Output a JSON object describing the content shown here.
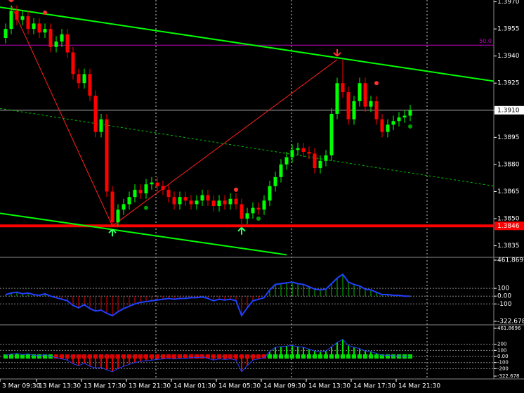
{
  "chart_data": [
    {
      "type": "candlestick",
      "open": [
        1.395,
        1.3955,
        1.3965,
        1.396,
        1.3962,
        1.3955,
        1.3958,
        1.3953,
        1.3955,
        1.3945,
        1.3948,
        1.3952,
        1.3942,
        1.393,
        1.3925,
        1.393,
        1.3918,
        1.3898,
        1.3905,
        1.3865,
        1.3848,
        1.3855,
        1.3858,
        1.3862,
        1.3866,
        1.3864,
        1.3869,
        1.387,
        1.3868,
        1.3866,
        1.3862,
        1.3858,
        1.3862,
        1.386,
        1.3858,
        1.386,
        1.3863,
        1.386,
        1.3857,
        1.386,
        1.3858,
        1.3861,
        1.3858,
        1.385,
        1.3853,
        1.3856,
        1.3855,
        1.386,
        1.3868,
        1.3873,
        1.388,
        1.3884,
        1.3888,
        1.3889,
        1.3887,
        1.3886,
        1.3878,
        1.3882,
        1.3885,
        1.3908,
        1.3925,
        1.392,
        1.3905,
        1.3915,
        1.3925,
        1.3912,
        1.3915,
        1.3905,
        1.3898,
        1.3902,
        1.3904,
        1.3906,
        1.3907
      ],
      "high": [
        1.3958,
        1.3968,
        1.3968,
        1.3965,
        1.3965,
        1.3961,
        1.3961,
        1.3958,
        1.3958,
        1.3951,
        1.3955,
        1.3955,
        1.3945,
        1.3933,
        1.3933,
        1.3933,
        1.3921,
        1.3908,
        1.3908,
        1.3868,
        1.3858,
        1.3861,
        1.3865,
        1.3869,
        1.3869,
        1.3872,
        1.3873,
        1.3873,
        1.3871,
        1.3869,
        1.3865,
        1.3865,
        1.3865,
        1.3863,
        1.3863,
        1.3866,
        1.3866,
        1.3863,
        1.3863,
        1.3863,
        1.3864,
        1.3864,
        1.3861,
        1.3856,
        1.3859,
        1.3859,
        1.3863,
        1.3871,
        1.3876,
        1.3883,
        1.3887,
        1.3891,
        1.3892,
        1.3892,
        1.389,
        1.3889,
        1.3885,
        1.3888,
        1.3911,
        1.3928,
        1.3938,
        1.3923,
        1.3918,
        1.3928,
        1.3928,
        1.3918,
        1.3918,
        1.3908,
        1.3905,
        1.3907,
        1.3909,
        1.391,
        1.3913
      ],
      "low": [
        1.3947,
        1.3952,
        1.3957,
        1.3957,
        1.3952,
        1.3952,
        1.395,
        1.395,
        1.3942,
        1.3942,
        1.3945,
        1.3939,
        1.3927,
        1.3922,
        1.3922,
        1.3915,
        1.3895,
        1.3895,
        1.3862,
        1.3846,
        1.3846,
        1.3852,
        1.3855,
        1.3859,
        1.3861,
        1.3861,
        1.3866,
        1.3865,
        1.3863,
        1.3859,
        1.3855,
        1.3855,
        1.3857,
        1.3855,
        1.3855,
        1.3857,
        1.3857,
        1.3854,
        1.3854,
        1.3855,
        1.3855,
        1.3855,
        1.3847,
        1.3847,
        1.385,
        1.3852,
        1.3852,
        1.3857,
        1.3865,
        1.387,
        1.3877,
        1.3881,
        1.3885,
        1.3884,
        1.3883,
        1.3875,
        1.3875,
        1.3879,
        1.3882,
        1.3905,
        1.3917,
        1.3902,
        1.3902,
        1.3912,
        1.3909,
        1.3909,
        1.3902,
        1.3895,
        1.3895,
        1.3899,
        1.3901,
        1.3903,
        1.3904
      ],
      "close": [
        1.3955,
        1.3965,
        1.396,
        1.3962,
        1.3955,
        1.3958,
        1.3953,
        1.3955,
        1.3945,
        1.3948,
        1.3952,
        1.3942,
        1.393,
        1.3925,
        1.393,
        1.3918,
        1.3898,
        1.3905,
        1.3865,
        1.3848,
        1.3855,
        1.3858,
        1.3862,
        1.3866,
        1.3864,
        1.3869,
        1.387,
        1.3868,
        1.3866,
        1.3862,
        1.3858,
        1.3862,
        1.386,
        1.3858,
        1.386,
        1.3863,
        1.386,
        1.3857,
        1.386,
        1.3858,
        1.3861,
        1.3858,
        1.385,
        1.3853,
        1.3856,
        1.3855,
        1.386,
        1.3868,
        1.3873,
        1.388,
        1.3884,
        1.3888,
        1.3889,
        1.3887,
        1.3886,
        1.3878,
        1.3882,
        1.3885,
        1.3908,
        1.3925,
        1.392,
        1.3905,
        1.3915,
        1.3925,
        1.3912,
        1.3915,
        1.3905,
        1.3898,
        1.3902,
        1.3904,
        1.3906,
        1.3907,
        1.391
      ],
      "up_color": "#00ff00",
      "down_color": "#ff0000",
      "ylim": [
        1.3829,
        1.3971
      ],
      "yticks": [
        {
          "value": 1.397,
          "label": "1.3970"
        },
        1.3955,
        {
          "value": 1.394,
          "label": "1.3940"
        },
        1.3925,
        {
          "value": 1.391,
          "label": "1.3910"
        },
        1.3895,
        {
          "value": 1.388,
          "label": "1.3880"
        },
        1.3865,
        {
          "value": 1.385,
          "label": "1.3850"
        },
        1.3835
      ],
      "xlabels": [
        "3 Mar 09:30",
        "13 Mar 13:30",
        "13 Mar 17:30",
        "13 Mar 21:30",
        "14 Mar 01:30",
        "14 Mar 05:30",
        "14 Mar 09:30",
        "14 Mar 13:30",
        "14 Mar 17:30",
        "14 Mar 21:30"
      ],
      "hlines": [
        {
          "value": 1.3946,
          "label": "50.0",
          "color": "#c000c0",
          "style": "text"
        },
        {
          "value": 1.391,
          "label": "1.3910",
          "color": "#b0b0b0",
          "style": "box"
        },
        {
          "value": 1.3846,
          "label": "1.3846",
          "color": "#ff0000",
          "style": "box"
        }
      ],
      "trendlines": [
        {
          "x": [
            -1,
            87
          ],
          "y": [
            1.3967,
            1.3926
          ],
          "color": "#00ff00",
          "dashed": false
        },
        {
          "x": [
            -1,
            50
          ],
          "y": [
            1.3853,
            1.383
          ],
          "color": "#00ff00",
          "dashed": false
        },
        {
          "x": [
            -1,
            87
          ],
          "y": [
            1.3911,
            1.3868
          ],
          "color": "#00c000",
          "dashed": true
        },
        {
          "x": [
            1,
            19,
            59
          ],
          "y": [
            1.3968,
            1.3846,
            1.3938
          ],
          "color": "#ff2020",
          "dashed": false
        }
      ],
      "markers": [
        {
          "kind": "arrow-down",
          "index": 1,
          "value": 1.3968,
          "color": "#ff3030"
        },
        {
          "kind": "arrow-down",
          "index": 59,
          "value": 1.3938,
          "color": "#ff3030"
        },
        {
          "kind": "arrow-up",
          "index": 19,
          "value": 1.3846,
          "color": "#30ff60"
        },
        {
          "kind": "arrow-up",
          "index": 42,
          "value": 1.3847,
          "color": "#30ff60"
        },
        {
          "kind": "dot",
          "index": 7,
          "value": 1.3964,
          "color": "#ff3030"
        },
        {
          "kind": "dot",
          "index": 41,
          "value": 1.3866,
          "color": "#ff3030"
        },
        {
          "kind": "dot",
          "index": 66,
          "value": 1.3925,
          "color": "#ff3030"
        },
        {
          "kind": "dot",
          "index": 25,
          "value": 1.3856,
          "color": "#00a000"
        },
        {
          "kind": "dot",
          "index": 45,
          "value": 1.385,
          "color": "#00a000"
        },
        {
          "kind": "dot",
          "index": 72,
          "value": 1.3901,
          "color": "#00a000"
        }
      ]
    },
    {
      "type": "indicator",
      "values": [
        20,
        40,
        50,
        30,
        40,
        20,
        10,
        30,
        0,
        -20,
        -40,
        -60,
        -120,
        -150,
        -110,
        -160,
        -190,
        -180,
        -220,
        -250,
        -200,
        -160,
        -130,
        -100,
        -80,
        -70,
        -60,
        -50,
        -40,
        -30,
        -40,
        -30,
        -30,
        -20,
        -20,
        -10,
        -30,
        -60,
        -40,
        -50,
        -40,
        -60,
        -250,
        -150,
        -60,
        -40,
        -20,
        80,
        150,
        160,
        170,
        180,
        160,
        150,
        120,
        90,
        80,
        90,
        160,
        230,
        280,
        180,
        150,
        130,
        90,
        80,
        50,
        20,
        20,
        10,
        10,
        0,
        0
      ],
      "color": "#2040ff",
      "up_color": "#00c000",
      "down_color": "#e00000",
      "ylim": [
        -322.678,
        461.8696
      ],
      "yticks": [
        461.8696,
        100,
        {
          "value": 0,
          "label": "0.00"
        },
        -100,
        -322.678
      ]
    },
    {
      "type": "strip",
      "values": [
        20,
        40,
        50,
        30,
        40,
        20,
        10,
        30,
        0,
        -20,
        -40,
        -60,
        -120,
        -150,
        -110,
        -160,
        -190,
        -180,
        -220,
        -250,
        -200,
        -160,
        -130,
        -100,
        -80,
        -70,
        -60,
        -50,
        -40,
        -30,
        -40,
        -30,
        -30,
        -20,
        -20,
        -10,
        -30,
        -60,
        -40,
        -50,
        -40,
        -60,
        -250,
        -150,
        -60,
        -40,
        -20,
        80,
        150,
        160,
        170,
        180,
        160,
        150,
        120,
        90,
        80,
        90,
        160,
        230,
        280,
        180,
        150,
        130,
        90,
        80,
        50,
        20,
        20,
        10,
        10,
        0,
        0
      ],
      "color": "#2040ff",
      "up_color": "#00e000",
      "down_color": "#e00000",
      "ylim": [
        -322.678,
        461.8696
      ],
      "yticks": [
        461.8696,
        200,
        100,
        {
          "value": 0,
          "label": "0.00"
        },
        -100,
        -200,
        -322.678
      ]
    }
  ]
}
